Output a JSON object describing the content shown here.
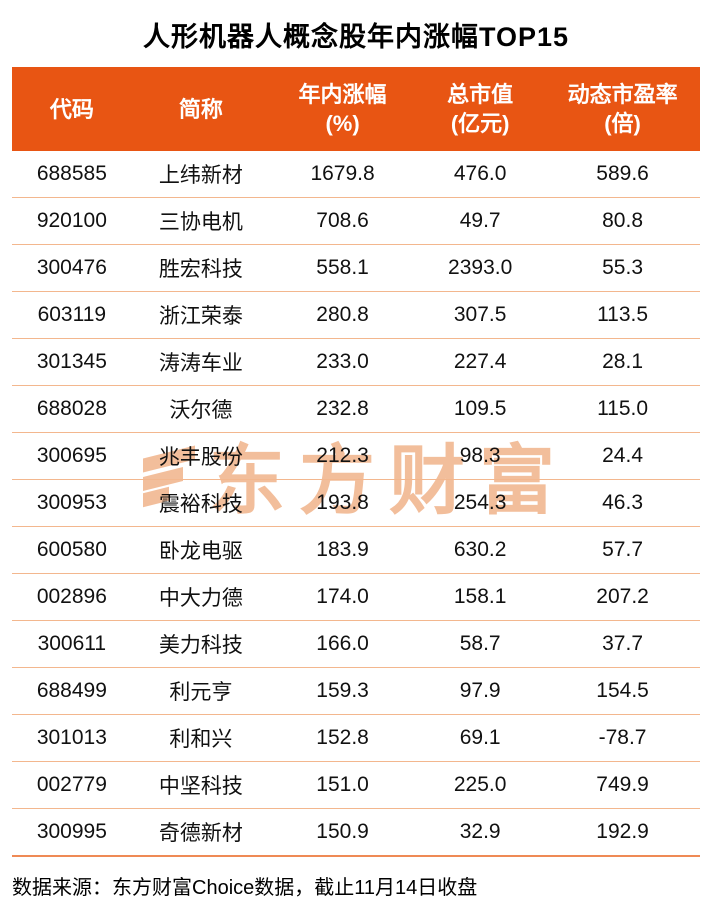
{
  "title": "人形机器人概念股年内涨幅TOP15",
  "footnote": "数据来源：东方财富Choice数据，截止11月14日收盘",
  "watermark": {
    "text": "东方财富"
  },
  "colors": {
    "header_bg": "#E85513",
    "header_text": "#FFFFFF",
    "row_divider": "#F3B78E",
    "table_bottom_border": "#EF8A55",
    "watermark": "#F2BE9B",
    "text": "#111111"
  },
  "chart_data": {
    "type": "table",
    "title": "人形机器人概念股年内涨幅TOP15",
    "columns": [
      {
        "label": "代码",
        "unit": ""
      },
      {
        "label": "简称",
        "unit": ""
      },
      {
        "label": "年内涨幅",
        "unit": "(%)"
      },
      {
        "label": "总市值",
        "unit": "(亿元)"
      },
      {
        "label": "动态市盈率",
        "unit": "(倍)"
      }
    ],
    "rows": [
      [
        "688585",
        "上纬新材",
        "1679.8",
        "476.0",
        "589.6"
      ],
      [
        "920100",
        "三协电机",
        "708.6",
        "49.7",
        "80.8"
      ],
      [
        "300476",
        "胜宏科技",
        "558.1",
        "2393.0",
        "55.3"
      ],
      [
        "603119",
        "浙江荣泰",
        "280.8",
        "307.5",
        "113.5"
      ],
      [
        "301345",
        "涛涛车业",
        "233.0",
        "227.4",
        "28.1"
      ],
      [
        "688028",
        "沃尔德",
        "232.8",
        "109.5",
        "115.0"
      ],
      [
        "300695",
        "兆丰股份",
        "212.3",
        "98.3",
        "24.4"
      ],
      [
        "300953",
        "震裕科技",
        "193.8",
        "254.3",
        "46.3"
      ],
      [
        "600580",
        "卧龙电驱",
        "183.9",
        "630.2",
        "57.7"
      ],
      [
        "002896",
        "中大力德",
        "174.0",
        "158.1",
        "207.2"
      ],
      [
        "300611",
        "美力科技",
        "166.0",
        "58.7",
        "37.7"
      ],
      [
        "688499",
        "利元亨",
        "159.3",
        "97.9",
        "154.5"
      ],
      [
        "301013",
        "利和兴",
        "152.8",
        "69.1",
        "-78.7"
      ],
      [
        "002779",
        "中坚科技",
        "151.0",
        "225.0",
        "749.9"
      ],
      [
        "300995",
        "奇德新材",
        "150.9",
        "32.9",
        "192.9"
      ]
    ],
    "footnote": "数据来源：东方财富Choice数据，截止11月14日收盘",
    "legend_position": "none",
    "grid": "horizontal-dividers"
  }
}
